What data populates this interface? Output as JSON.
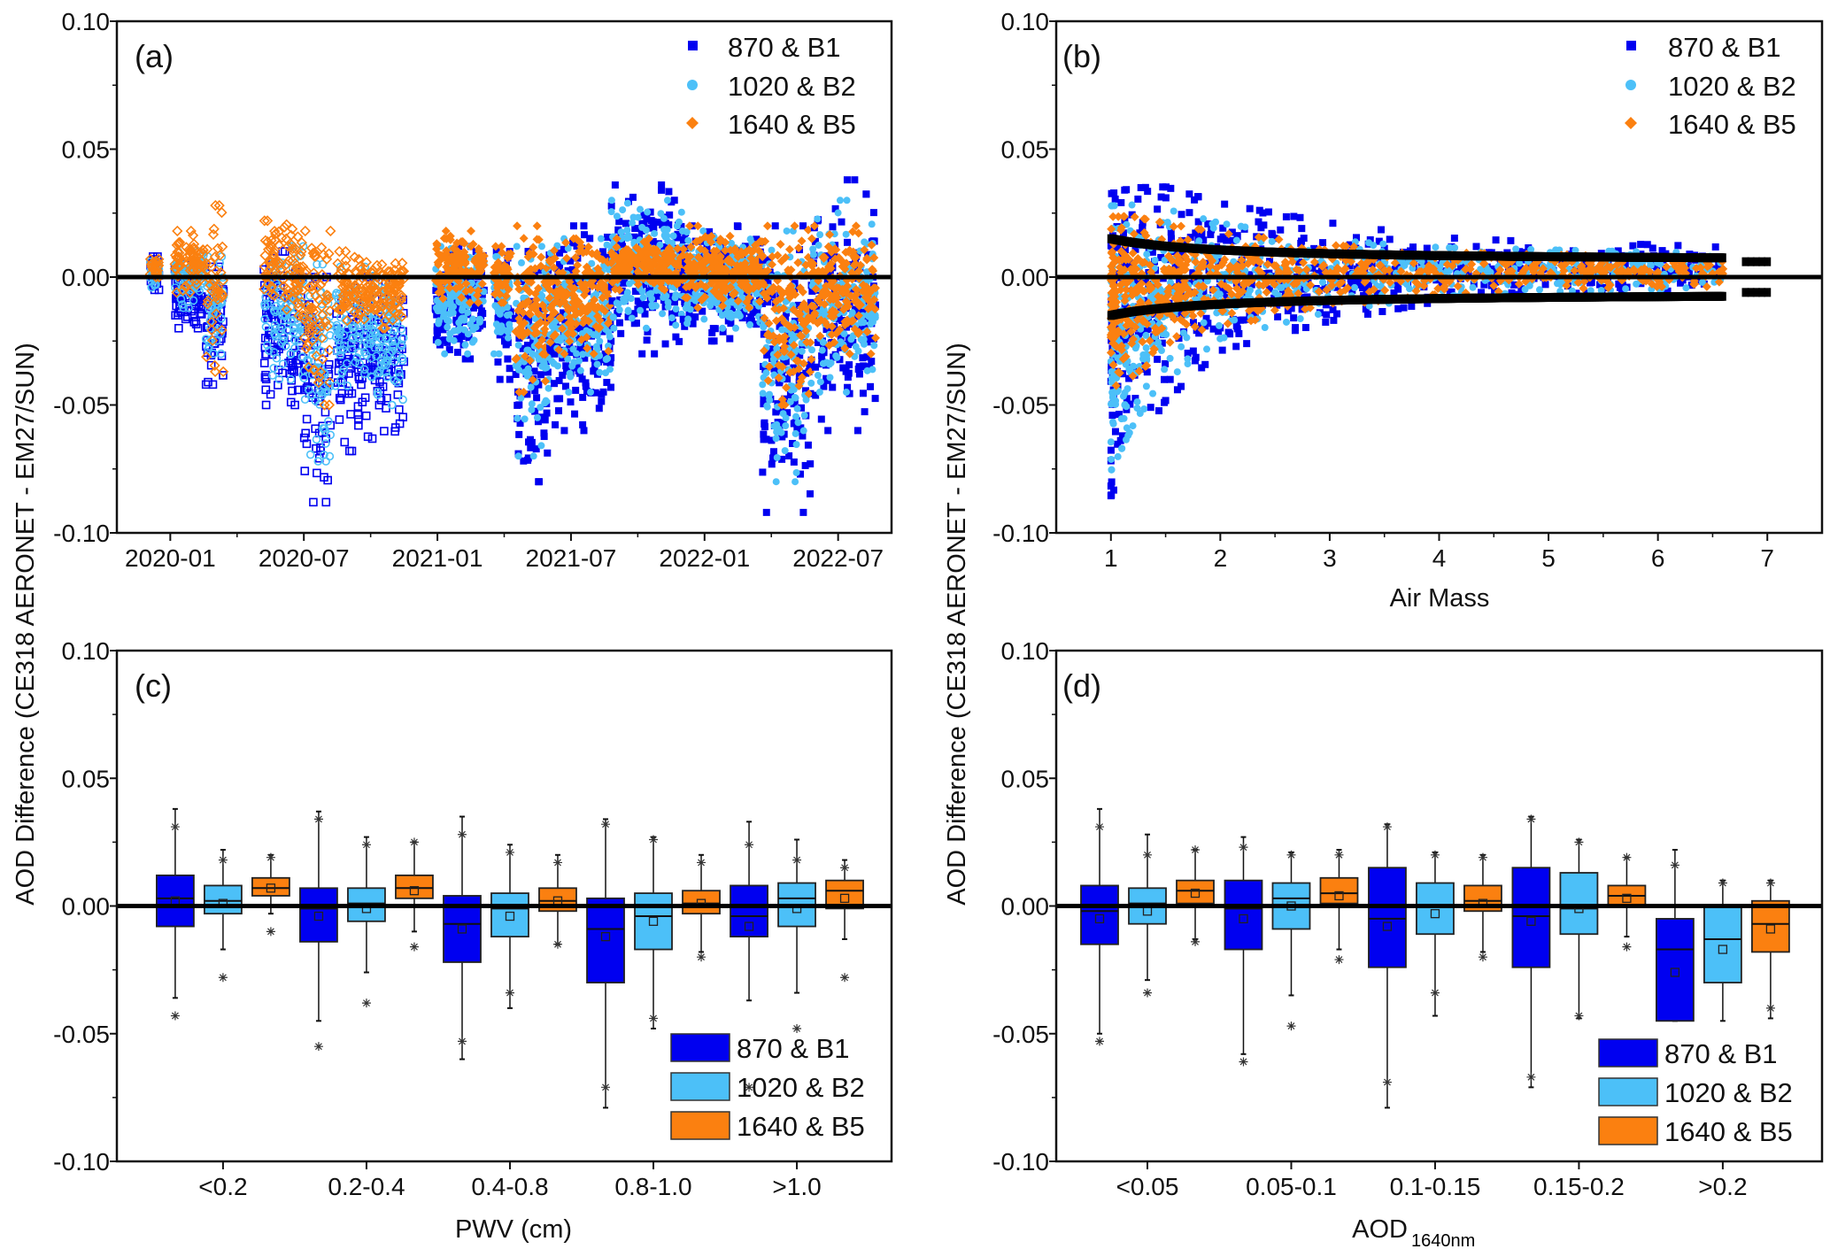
{
  "colors": {
    "series1": "#0000f0",
    "series2": "#4cc0f8",
    "series3": "#fb8010",
    "zero_line": "#000000",
    "envelope": "#000000"
  },
  "y_axis_title": "AOD Difference (CE318 AERONET - EM27/SUN)",
  "legend": [
    "870 & B1",
    "1020 & B2",
    "1640 & B5"
  ],
  "chart_data": [
    {
      "panel": "(a)",
      "type": "scatter",
      "xlabel": "",
      "ylabel": "AOD Difference (CE318 AERONET - EM27/SUN)",
      "ylim": [
        -0.1,
        0.1
      ],
      "yticks": [
        "0.10",
        "0.05",
        "0.00",
        "-0.05",
        "-0.10"
      ],
      "x_unit": "months since 2020-01",
      "xlim": [
        -2.4,
        32.4
      ],
      "xticks": [
        {
          "v": 0,
          "label": "2020-01"
        },
        {
          "v": 6,
          "label": "2020-07"
        },
        {
          "v": 12,
          "label": "2021-01"
        },
        {
          "v": 18,
          "label": "2021-07"
        },
        {
          "v": 24,
          "label": "2022-01"
        },
        {
          "v": 30,
          "label": "2022-07"
        }
      ],
      "legend_placement": "top-right",
      "note_hollow_markers_before_2021": true,
      "segments": [
        {
          "x": [
            -0.9,
            -0.5
          ],
          "s1": [
            -0.005,
            0.008
          ],
          "s2": [
            -0.004,
            0.006
          ],
          "s3": [
            0.0,
            0.007
          ],
          "hollow": true
        },
        {
          "x": [
            0.2,
            1.5
          ],
          "s1": [
            -0.02,
            0.005
          ],
          "s2": [
            -0.012,
            0.01
          ],
          "s3": [
            -0.006,
            0.018
          ],
          "hollow": true
        },
        {
          "x": [
            1.6,
            2.4
          ],
          "s1": [
            -0.042,
            0.004
          ],
          "s2": [
            -0.03,
            0.008
          ],
          "s3": [
            -0.037,
            0.028
          ],
          "hollow": true
        },
        {
          "x": [
            4.2,
            6.0
          ],
          "s1": [
            -0.05,
            0.01
          ],
          "s2": [
            -0.04,
            0.012
          ],
          "s3": [
            -0.015,
            0.022
          ],
          "hollow": true
        },
        {
          "x": [
            6.0,
            7.2
          ],
          "s1": [
            -0.088,
            0.0
          ],
          "s2": [
            -0.072,
            0.005
          ],
          "s3": [
            -0.05,
            0.018
          ],
          "hollow": true
        },
        {
          "x": [
            7.4,
            10.5
          ],
          "s1": [
            -0.068,
            0.0
          ],
          "s2": [
            -0.05,
            0.004
          ],
          "s3": [
            -0.02,
            0.01
          ],
          "hollow": true
        },
        {
          "x": [
            11.9,
            14.1
          ],
          "s1": [
            -0.032,
            0.012
          ],
          "s2": [
            -0.03,
            0.012
          ],
          "s3": [
            -0.01,
            0.018
          ],
          "hollow": false
        },
        {
          "x": [
            14.5,
            15.3
          ],
          "s1": [
            -0.04,
            0.01
          ],
          "s2": [
            -0.03,
            0.008
          ],
          "s3": [
            -0.01,
            0.012
          ],
          "hollow": false
        },
        {
          "x": [
            15.5,
            17.0
          ],
          "s1": [
            -0.08,
            0.01
          ],
          "s2": [
            -0.07,
            0.012
          ],
          "s3": [
            -0.045,
            0.02
          ],
          "hollow": false
        },
        {
          "x": [
            17.0,
            19.8
          ],
          "s1": [
            -0.06,
            0.02
          ],
          "s2": [
            -0.045,
            0.015
          ],
          "s3": [
            -0.03,
            0.015
          ],
          "hollow": false
        },
        {
          "x": [
            19.8,
            23.0
          ],
          "s1": [
            -0.03,
            0.036
          ],
          "s2": [
            -0.02,
            0.03
          ],
          "s3": [
            -0.005,
            0.015
          ],
          "hollow": false
        },
        {
          "x": [
            23.0,
            26.6
          ],
          "s1": [
            -0.025,
            0.02
          ],
          "s2": [
            -0.02,
            0.018
          ],
          "s3": [
            -0.012,
            0.02
          ],
          "hollow": false
        },
        {
          "x": [
            26.6,
            28.8
          ],
          "s1": [
            -0.092,
            0.02
          ],
          "s2": [
            -0.08,
            0.018
          ],
          "s3": [
            -0.05,
            0.02
          ],
          "hollow": false
        },
        {
          "x": [
            28.8,
            31.7
          ],
          "s1": [
            -0.06,
            0.038
          ],
          "s2": [
            -0.045,
            0.03
          ],
          "s3": [
            -0.03,
            0.02
          ],
          "hollow": false
        }
      ]
    },
    {
      "panel": "(b)",
      "type": "scatter",
      "xlabel": "Air Mass",
      "ylim": [
        -0.1,
        0.1
      ],
      "yticks": [
        "0.10",
        "0.05",
        "0.00",
        "-0.05",
        "-0.10"
      ],
      "xlim": [
        0.5,
        7.5
      ],
      "xticks": [
        {
          "v": 1,
          "label": "1"
        },
        {
          "v": 2,
          "label": "2"
        },
        {
          "v": 3,
          "label": "3"
        },
        {
          "v": 4,
          "label": "4"
        },
        {
          "v": 5,
          "label": "5"
        },
        {
          "v": 6,
          "label": "6"
        },
        {
          "v": 7,
          "label": "7"
        }
      ],
      "legend_placement": "top-right",
      "air_mass_knots": [
        1.0,
        1.2,
        1.5,
        2.0,
        3.0,
        4.0,
        5.0,
        6.0,
        6.6
      ],
      "s1_max": [
        0.035,
        0.037,
        0.037,
        0.03,
        0.022,
        0.016,
        0.014,
        0.013,
        0.012
      ],
      "s1_min": [
        -0.088,
        -0.07,
        -0.05,
        -0.03,
        -0.018,
        -0.01,
        -0.007,
        -0.006,
        -0.005
      ],
      "s2_max": [
        0.03,
        0.03,
        0.028,
        0.022,
        0.015,
        0.012,
        0.011,
        0.01,
        0.01
      ],
      "s2_min": [
        -0.078,
        -0.06,
        -0.042,
        -0.025,
        -0.014,
        -0.008,
        -0.006,
        -0.005,
        -0.004
      ],
      "s3_max": [
        0.025,
        0.025,
        0.022,
        0.018,
        0.013,
        0.01,
        0.009,
        0.008,
        0.008
      ],
      "s3_min": [
        -0.045,
        -0.04,
        -0.03,
        -0.02,
        -0.012,
        -0.007,
        -0.005,
        -0.004,
        -0.004
      ],
      "uncertainty_envelope": {
        "a": 0.0062,
        "b": 0.0088,
        "air_mass_range": [
          1.0,
          6.6
        ],
        "extra_air_mass_range": [
          6.8,
          7.0
        ],
        "extra_value": 0.006
      }
    },
    {
      "panel": "(c)",
      "type": "box",
      "xlabel": "PWV (cm)",
      "ylim": [
        -0.1,
        0.1
      ],
      "yticks": [
        "0.10",
        "0.05",
        "0.00",
        "-0.05",
        "-0.10"
      ],
      "categories": [
        "<0.2",
        "0.2-0.4",
        "0.4-0.8",
        "0.8-1.0",
        ">1.0"
      ],
      "legend_placement": "bottom-right",
      "series": [
        {
          "name": "870 & B1",
          "boxes": [
            {
              "lo": -0.036,
              "q1": -0.008,
              "med": 0.003,
              "q3": 0.012,
              "hi": 0.038,
              "mean": 0.002,
              "out": [
                0.031,
                -0.043
              ]
            },
            {
              "lo": -0.045,
              "q1": -0.014,
              "med": -0.001,
              "q3": 0.007,
              "hi": 0.037,
              "mean": -0.004,
              "out": [
                0.034,
                -0.055
              ]
            },
            {
              "lo": -0.06,
              "q1": -0.022,
              "med": -0.007,
              "q3": 0.004,
              "hi": 0.035,
              "mean": -0.009,
              "out": [
                0.028,
                -0.053
              ]
            },
            {
              "lo": -0.079,
              "q1": -0.03,
              "med": -0.009,
              "q3": 0.003,
              "hi": 0.034,
              "mean": -0.012,
              "out": [
                0.032,
                -0.071
              ]
            },
            {
              "lo": -0.037,
              "q1": -0.012,
              "med": -0.004,
              "q3": 0.008,
              "hi": 0.033,
              "mean": -0.008,
              "out": [
                0.024,
                -0.071
              ]
            }
          ]
        },
        {
          "name": "1020 & B2",
          "boxes": [
            {
              "lo": -0.017,
              "q1": -0.003,
              "med": 0.002,
              "q3": 0.008,
              "hi": 0.022,
              "mean": 0.001,
              "out": [
                0.018,
                -0.028
              ]
            },
            {
              "lo": -0.026,
              "q1": -0.006,
              "med": 0.001,
              "q3": 0.007,
              "hi": 0.027,
              "mean": -0.001,
              "out": [
                0.024,
                -0.038
              ]
            },
            {
              "lo": -0.04,
              "q1": -0.012,
              "med": -0.001,
              "q3": 0.005,
              "hi": 0.024,
              "mean": -0.004,
              "out": [
                0.021,
                -0.034
              ]
            },
            {
              "lo": -0.048,
              "q1": -0.017,
              "med": -0.004,
              "q3": 0.005,
              "hi": 0.027,
              "mean": -0.006,
              "out": [
                0.026,
                -0.044
              ]
            },
            {
              "lo": -0.034,
              "q1": -0.008,
              "med": 0.003,
              "q3": 0.009,
              "hi": 0.026,
              "mean": -0.001,
              "out": [
                0.018,
                -0.048
              ]
            }
          ]
        },
        {
          "name": "1640 & B5",
          "boxes": [
            {
              "lo": -0.003,
              "q1": 0.004,
              "med": 0.007,
              "q3": 0.011,
              "hi": 0.02,
              "mean": 0.007,
              "out": [
                0.019,
                -0.01
              ]
            },
            {
              "lo": -0.01,
              "q1": 0.003,
              "med": 0.007,
              "q3": 0.012,
              "hi": 0.025,
              "mean": 0.006,
              "out": [
                0.025,
                -0.016
              ]
            },
            {
              "lo": -0.015,
              "q1": -0.002,
              "med": 0.002,
              "q3": 0.007,
              "hi": 0.02,
              "mean": 0.002,
              "out": [
                0.017,
                -0.015
              ]
            },
            {
              "lo": -0.018,
              "q1": -0.003,
              "med": 0.001,
              "q3": 0.006,
              "hi": 0.02,
              "mean": 0.001,
              "out": [
                0.017,
                -0.02
              ]
            },
            {
              "lo": -0.013,
              "q1": -0.001,
              "med": 0.006,
              "q3": 0.01,
              "hi": 0.018,
              "mean": 0.003,
              "out": [
                0.015,
                -0.028
              ]
            }
          ]
        }
      ]
    },
    {
      "panel": "(d)",
      "type": "box",
      "xlabel": "AOD",
      "xlabel_sub": "1640nm",
      "ylim": [
        -0.1,
        0.1
      ],
      "yticks": [
        "0.10",
        "0.05",
        "0.00",
        "-0.05",
        "-0.10"
      ],
      "categories": [
        "<0.05",
        "0.05-0.1",
        "0.1-0.15",
        "0.15-0.2",
        ">0.2"
      ],
      "legend_placement": "bottom-right",
      "series": [
        {
          "name": "870 & B1",
          "boxes": [
            {
              "lo": -0.05,
              "q1": -0.015,
              "med": -0.002,
              "q3": 0.008,
              "hi": 0.038,
              "mean": -0.005,
              "out": [
                0.031,
                -0.053
              ]
            },
            {
              "lo": -0.058,
              "q1": -0.017,
              "med": -0.001,
              "q3": 0.01,
              "hi": 0.027,
              "mean": -0.005,
              "out": [
                0.023,
                -0.061
              ]
            },
            {
              "lo": -0.079,
              "q1": -0.024,
              "med": -0.005,
              "q3": 0.015,
              "hi": 0.032,
              "mean": -0.008,
              "out": [
                0.031,
                -0.069
              ]
            },
            {
              "lo": -0.071,
              "q1": -0.024,
              "med": -0.004,
              "q3": 0.015,
              "hi": 0.035,
              "mean": -0.006,
              "out": [
                0.034,
                -0.067
              ]
            },
            {
              "lo": -0.045,
              "q1": -0.045,
              "med": -0.017,
              "q3": -0.005,
              "hi": 0.022,
              "mean": -0.026,
              "out": [
                0.016
              ]
            }
          ]
        },
        {
          "name": "1020 & B2",
          "boxes": [
            {
              "lo": -0.029,
              "q1": -0.007,
              "med": 0.001,
              "q3": 0.007,
              "hi": 0.028,
              "mean": -0.002,
              "out": [
                0.02,
                -0.034
              ]
            },
            {
              "lo": -0.035,
              "q1": -0.009,
              "med": 0.003,
              "q3": 0.009,
              "hi": 0.021,
              "mean": 0.0,
              "out": [
                0.02,
                -0.047
              ]
            },
            {
              "lo": -0.043,
              "q1": -0.011,
              "med": 0.0,
              "q3": 0.009,
              "hi": 0.021,
              "mean": -0.003,
              "out": [
                0.02,
                -0.034
              ]
            },
            {
              "lo": -0.044,
              "q1": -0.011,
              "med": -0.001,
              "q3": 0.013,
              "hi": 0.026,
              "mean": -0.001,
              "out": [
                0.025,
                -0.043
              ]
            },
            {
              "lo": -0.045,
              "q1": -0.03,
              "med": -0.013,
              "q3": 0.0,
              "hi": 0.01,
              "mean": -0.017,
              "out": [
                0.009
              ]
            }
          ]
        },
        {
          "name": "1640 & B5",
          "boxes": [
            {
              "lo": -0.013,
              "q1": 0.001,
              "med": 0.006,
              "q3": 0.01,
              "hi": 0.022,
              "mean": 0.005,
              "out": [
                0.022,
                -0.014
              ]
            },
            {
              "lo": -0.017,
              "q1": 0.001,
              "med": 0.005,
              "q3": 0.011,
              "hi": 0.022,
              "mean": 0.004,
              "out": [
                0.02,
                -0.021
              ]
            },
            {
              "lo": -0.018,
              "q1": -0.002,
              "med": 0.002,
              "q3": 0.008,
              "hi": 0.02,
              "mean": 0.001,
              "out": [
                0.019,
                -0.02
              ]
            },
            {
              "lo": -0.012,
              "q1": 0.0,
              "med": 0.004,
              "q3": 0.008,
              "hi": 0.019,
              "mean": 0.003,
              "out": [
                0.019,
                -0.016
              ]
            },
            {
              "lo": -0.044,
              "q1": -0.018,
              "med": -0.007,
              "q3": 0.002,
              "hi": 0.01,
              "mean": -0.009,
              "out": [
                0.009,
                -0.04
              ]
            }
          ]
        }
      ]
    }
  ]
}
